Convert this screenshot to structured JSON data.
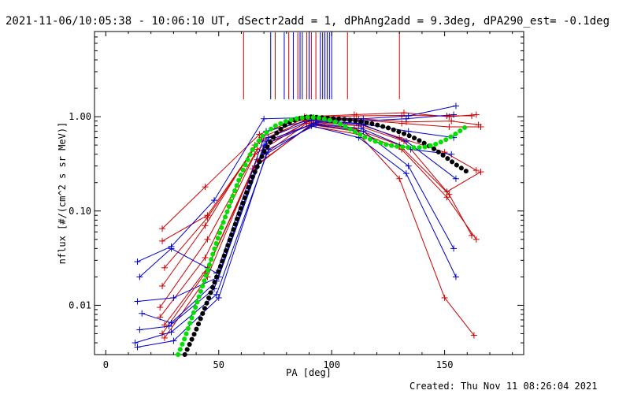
{
  "chart_data": {
    "type": "line",
    "title": "2021-11-06/10:05:38 - 10:06:10 UT, dSectr2add = 1, dPhAng2add = 9.3deg, dPA290_est= -0.1deg",
    "xlabel": "PA [deg]",
    "ylabel": "nflux [#/(cm^2 s sr MeV)]",
    "xlim": [
      -5,
      185
    ],
    "ylim": [
      0.003,
      8.0
    ],
    "y_scale": "log",
    "x_ticks": [
      0,
      50,
      100,
      150
    ],
    "x_tick_labels": [
      "0",
      "50",
      "100",
      "150"
    ],
    "y_ticks": [
      0.01,
      0.1,
      1.0
    ],
    "y_tick_labels": [
      "0.01",
      "0.10",
      "1.00"
    ],
    "grid": false,
    "legend": "none",
    "vertical_markers": {
      "red": [
        61,
        75,
        81,
        85,
        89,
        91,
        93,
        107,
        130
      ],
      "blue": [
        73,
        79,
        83,
        86,
        87,
        90,
        95,
        96,
        97,
        98,
        99,
        100
      ]
    },
    "series": [
      {
        "color": "#cc0000",
        "x": [
          25,
          44,
          68,
          88,
          110,
          132,
          152,
          164
        ],
        "y": [
          0.065,
          0.18,
          0.65,
          1.0,
          1.05,
          1.1,
          1.0,
          1.05
        ]
      },
      {
        "color": "#cc0000",
        "x": [
          25,
          45,
          69,
          89,
          111,
          131,
          151,
          162
        ],
        "y": [
          0.048,
          0.09,
          0.6,
          0.98,
          1.02,
          1.03,
          1.02,
          1.02
        ]
      },
      {
        "color": "#cc0000",
        "x": [
          26,
          45,
          68,
          90,
          112,
          133,
          153,
          165
        ],
        "y": [
          0.025,
          0.085,
          0.55,
          0.95,
          0.95,
          0.88,
          0.9,
          0.82
        ]
      },
      {
        "color": "#cc0000",
        "x": [
          25,
          44,
          66,
          88,
          110,
          131,
          152,
          166
        ],
        "y": [
          0.016,
          0.07,
          0.5,
          0.92,
          0.93,
          0.85,
          0.78,
          0.78
        ]
      },
      {
        "color": "#cc0000",
        "x": [
          24,
          45,
          67,
          90,
          111,
          130,
          150,
          164
        ],
        "y": [
          0.0095,
          0.05,
          0.45,
          0.9,
          0.85,
          0.6,
          0.42,
          0.27
        ]
      },
      {
        "color": "#cc0000",
        "x": [
          24,
          44,
          66,
          89,
          112,
          132,
          151,
          166
        ],
        "y": [
          0.0075,
          0.032,
          0.4,
          0.88,
          0.8,
          0.55,
          0.16,
          0.26
        ]
      },
      {
        "color": "#cc0000",
        "x": [
          26,
          45,
          67,
          89,
          110,
          130,
          152,
          162
        ],
        "y": [
          0.0062,
          0.025,
          0.35,
          0.85,
          0.75,
          0.5,
          0.15,
          0.055
        ]
      },
      {
        "color": "#cc0000",
        "x": [
          25,
          44,
          66,
          91,
          111,
          131,
          151,
          164
        ],
        "y": [
          0.005,
          0.022,
          0.3,
          0.82,
          0.7,
          0.45,
          0.14,
          0.05
        ]
      },
      {
        "color": "#cc0000",
        "x": [
          26,
          45,
          65,
          90,
          112,
          130,
          150,
          163
        ],
        "y": [
          0.0045,
          0.02,
          0.28,
          0.8,
          0.65,
          0.22,
          0.012,
          0.0048
        ]
      },
      {
        "color": "#0000cc",
        "x": [
          14,
          29,
          48,
          70,
          92,
          114,
          134,
          155
        ],
        "y": [
          0.029,
          0.042,
          0.13,
          0.95,
          0.98,
          0.95,
          1.02,
          1.3
        ]
      },
      {
        "color": "#0000cc",
        "x": [
          15,
          29,
          49,
          71,
          93,
          113,
          133,
          154
        ],
        "y": [
          0.02,
          0.04,
          0.022,
          0.7,
          0.95,
          0.9,
          0.95,
          1.05
        ]
      },
      {
        "color": "#0000cc",
        "x": [
          14,
          30,
          50,
          72,
          91,
          112,
          134,
          154
        ],
        "y": [
          0.011,
          0.012,
          0.02,
          0.6,
          0.92,
          0.85,
          0.7,
          0.6
        ]
      },
      {
        "color": "#0000cc",
        "x": [
          16,
          29,
          49,
          71,
          94,
          114,
          133,
          155
        ],
        "y": [
          0.0082,
          0.0065,
          0.018,
          0.55,
          0.88,
          0.82,
          0.55,
          0.22
        ]
      },
      {
        "color": "#0000cc",
        "x": [
          15,
          28,
          48,
          70,
          92,
          113,
          135,
          153
        ],
        "y": [
          0.0055,
          0.006,
          0.015,
          0.5,
          0.85,
          0.75,
          0.45,
          0.4
        ]
      },
      {
        "color": "#0000cc",
        "x": [
          13,
          29,
          49,
          72,
          93,
          114,
          134,
          154
        ],
        "y": [
          0.004,
          0.0052,
          0.013,
          0.45,
          0.82,
          0.7,
          0.3,
          0.04
        ]
      },
      {
        "color": "#0000cc",
        "x": [
          14,
          30,
          50,
          71,
          91,
          112,
          133,
          155
        ],
        "y": [
          0.0036,
          0.0042,
          0.012,
          0.4,
          0.8,
          0.6,
          0.25,
          0.02
        ]
      }
    ],
    "fits": [
      {
        "color": "#000000",
        "style": "dotted-heavy",
        "x": [
          35,
          40,
          45,
          50,
          55,
          60,
          65,
          70,
          75,
          80,
          85,
          90,
          95,
          100,
          105,
          110,
          115,
          120,
          125,
          130,
          135,
          140,
          145,
          150,
          155,
          160
        ],
        "y": [
          0.003,
          0.0055,
          0.011,
          0.023,
          0.05,
          0.11,
          0.23,
          0.42,
          0.65,
          0.84,
          0.95,
          1.0,
          0.98,
          0.96,
          0.94,
          0.91,
          0.87,
          0.82,
          0.76,
          0.69,
          0.62,
          0.54,
          0.46,
          0.38,
          0.31,
          0.26
        ]
      },
      {
        "color": "#00e000",
        "style": "dotted-heavy",
        "x": [
          32,
          35,
          40,
          45,
          50,
          55,
          60,
          65,
          70,
          75,
          80,
          85,
          90,
          95,
          100,
          105,
          110,
          115,
          120,
          125,
          130,
          135,
          140,
          145,
          150,
          155,
          160
        ],
        "y": [
          0.003,
          0.0045,
          0.01,
          0.023,
          0.055,
          0.12,
          0.25,
          0.45,
          0.65,
          0.8,
          0.9,
          0.96,
          0.99,
          0.97,
          0.91,
          0.81,
          0.7,
          0.6,
          0.54,
          0.5,
          0.48,
          0.47,
          0.47,
          0.5,
          0.56,
          0.66,
          0.8
        ]
      }
    ]
  },
  "footer": {
    "created": "Created: Thu Nov 11 08:26:04 2021"
  }
}
